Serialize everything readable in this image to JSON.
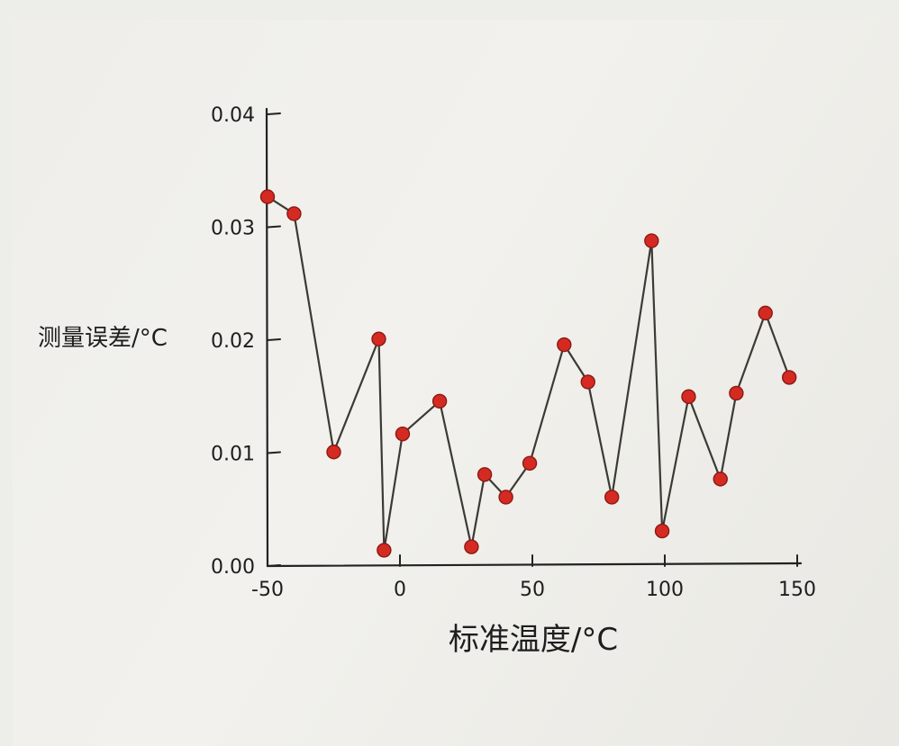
{
  "chart_data": {
    "type": "line",
    "title": "",
    "xlabel": "标准温度/°C",
    "ylabel": "测量误差/°C",
    "xlim": [
      -50,
      150
    ],
    "ylim": [
      0.0,
      0.04
    ],
    "x_ticks": [
      {
        "value": -50,
        "label": "-50"
      },
      {
        "value": 0,
        "label": "0"
      },
      {
        "value": 50,
        "label": "50"
      },
      {
        "value": 100,
        "label": "100"
      },
      {
        "value": 150,
        "label": "150"
      }
    ],
    "y_ticks": [
      {
        "value": 0.0,
        "label": "0.00"
      },
      {
        "value": 0.01,
        "label": "0.01"
      },
      {
        "value": 0.02,
        "label": "0.02"
      },
      {
        "value": 0.03,
        "label": "0.03"
      },
      {
        "value": 0.04,
        "label": "0.04"
      }
    ],
    "grid": false,
    "series": [
      {
        "color": "#d52a22",
        "x": [
          -50,
          -40,
          -25,
          -8,
          -6,
          1,
          15,
          27,
          32,
          40,
          49,
          62,
          71,
          80,
          95,
          99,
          109,
          121,
          127,
          138,
          147
        ],
        "y": [
          0.0327,
          0.0312,
          0.0101,
          0.0201,
          0.0014,
          0.0117,
          0.0146,
          0.0017,
          0.0081,
          0.0061,
          0.0091,
          0.0196,
          0.0163,
          0.0061,
          0.0288,
          0.0031,
          0.015,
          0.0077,
          0.0153,
          0.0224,
          0.0167
        ]
      }
    ]
  }
}
